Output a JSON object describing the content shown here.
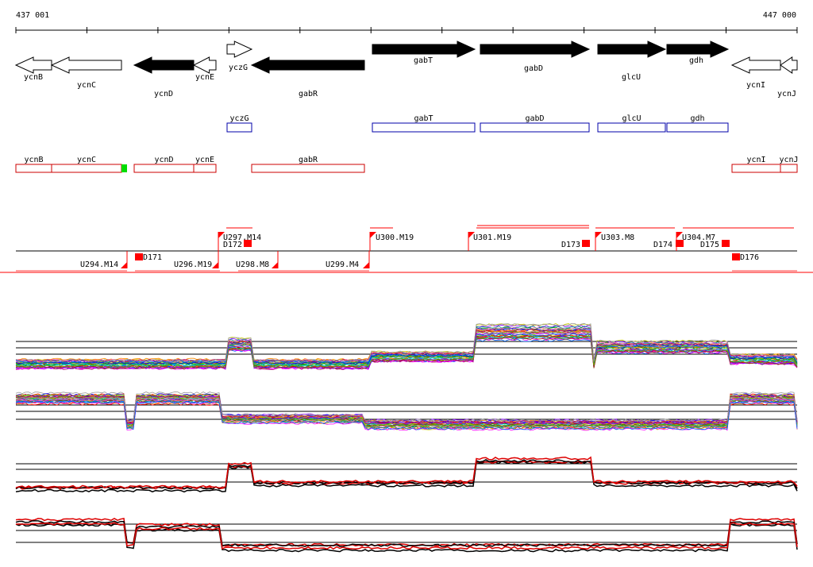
{
  "coordinates": {
    "start": "437 001",
    "end": "447 000"
  },
  "genes": [
    {
      "name": "ycnB",
      "fill": "white",
      "dir": "left",
      "row": "low"
    },
    {
      "name": "ycnC",
      "fill": "white",
      "dir": "left",
      "row": "low"
    },
    {
      "name": "ycnD",
      "fill": "black",
      "dir": "left",
      "row": "low"
    },
    {
      "name": "ycnE",
      "fill": "white",
      "dir": "left",
      "row": "low"
    },
    {
      "name": "yczG",
      "fill": "white",
      "dir": "right",
      "row": "high"
    },
    {
      "name": "gabR",
      "fill": "black",
      "dir": "left",
      "row": "low"
    },
    {
      "name": "gabT",
      "fill": "black",
      "dir": "right",
      "row": "high"
    },
    {
      "name": "gabD",
      "fill": "black",
      "dir": "right",
      "row": "high"
    },
    {
      "name": "glcU",
      "fill": "black",
      "dir": "right",
      "row": "high"
    },
    {
      "name": "gdh",
      "fill": "black",
      "dir": "right",
      "row": "high"
    },
    {
      "name": "ycnI",
      "fill": "white",
      "dir": "left",
      "row": "low"
    },
    {
      "name": "ycnJ",
      "fill": "white",
      "dir": "left",
      "row": "low"
    }
  ],
  "forward_boxes": [
    "yczG",
    "gabT",
    "gabD",
    "glcU",
    "gdh"
  ],
  "reverse_boxes": [
    "ycnB",
    "ycnC",
    "ycnD",
    "ycnE",
    "gabR",
    "ycnI",
    "ycnJ"
  ],
  "upper_segments": [
    "U297.M14",
    "D172",
    "U300.M19",
    "U301.M19",
    "D173",
    "U303.M8",
    "D174",
    "U304.M7",
    "D175"
  ],
  "lower_segments": [
    "U294.M14",
    "D171",
    "U296.M19",
    "U298.M8",
    "U299.M4",
    "D176"
  ],
  "track_colors": {
    "forward_gene_box": "#0000aa",
    "reverse_gene_box": "#cc0000",
    "segment": "#ff0000",
    "highlight": "#00dd00",
    "profile_main": "#000000",
    "profile_rep": "#dd0000"
  }
}
